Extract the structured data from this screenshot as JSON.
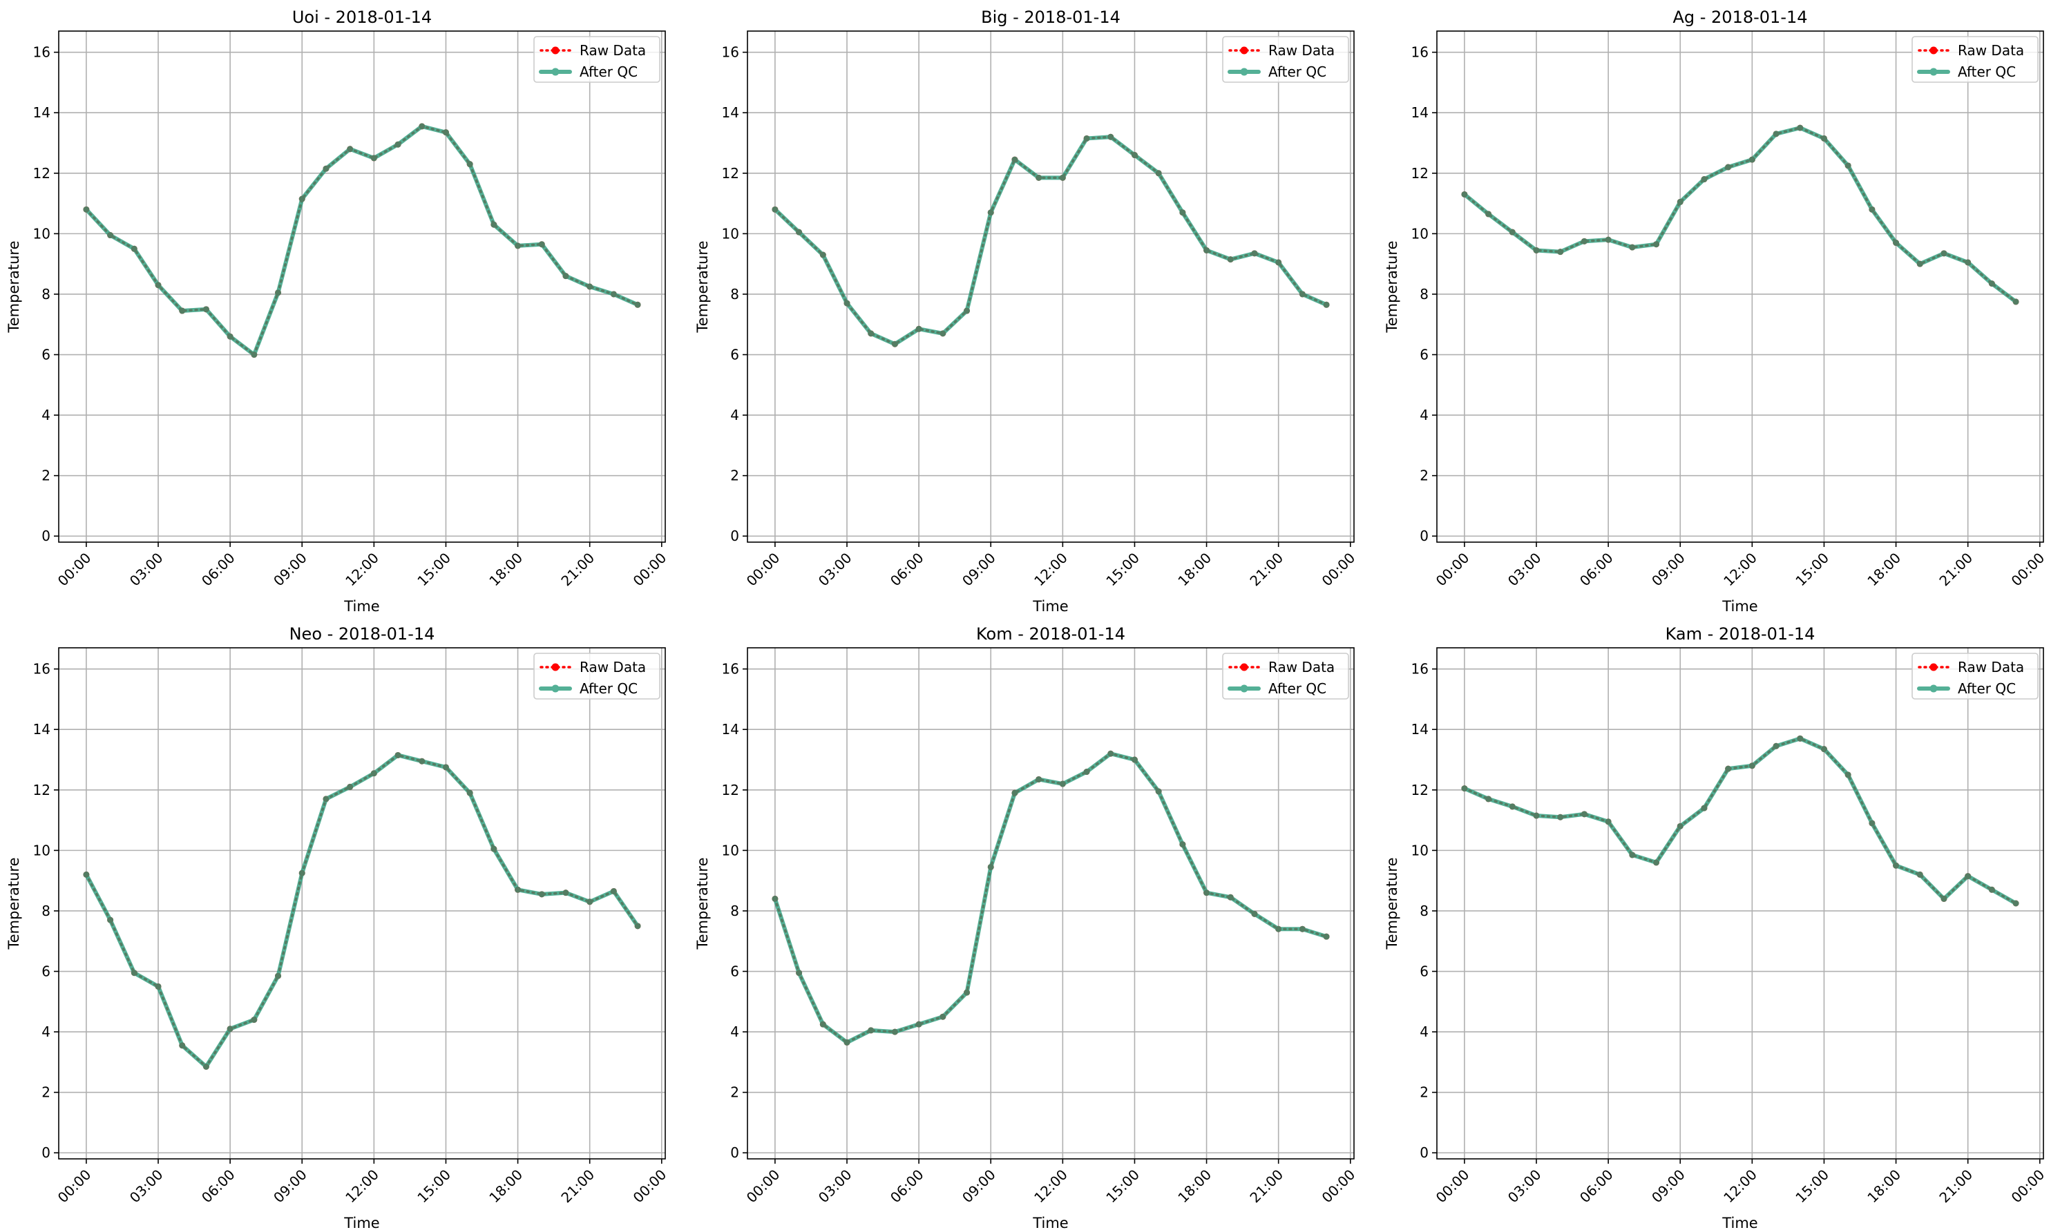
{
  "chart_data": [
    {
      "type": "line",
      "title": "Uoi - 2018-01-14",
      "xlabel": "Time",
      "ylabel": "Temperature",
      "xlim": [
        -1.15,
        24.15
      ],
      "ylim": [
        -0.2,
        16.7
      ],
      "yticks": [
        0,
        2,
        4,
        6,
        8,
        10,
        12,
        14,
        16
      ],
      "xticks": [
        0,
        3,
        6,
        9,
        12,
        15,
        18,
        21,
        24
      ],
      "xtick_labels": [
        "00:00",
        "03:00",
        "06:00",
        "09:00",
        "12:00",
        "15:00",
        "18:00",
        "21:00",
        "00:00"
      ],
      "grid": true,
      "legend_position": "top-right",
      "x": [
        0,
        1,
        2,
        3,
        4,
        5,
        6,
        7,
        8,
        9,
        10,
        11,
        12,
        13,
        14,
        15,
        16,
        17,
        18,
        19,
        20,
        21,
        22,
        23
      ],
      "series": [
        {
          "name": "Raw Data",
          "color": "#ff0000",
          "style": "dotted-marker",
          "values": [
            10.8,
            9.95,
            9.5,
            8.3,
            7.45,
            7.5,
            6.6,
            6.0,
            8.05,
            11.15,
            12.15,
            12.8,
            12.5,
            12.95,
            13.55,
            13.35,
            12.3,
            10.3,
            9.6,
            9.65,
            8.6,
            8.25,
            8.0,
            7.65
          ]
        },
        {
          "name": "After QC",
          "color": "#2a9d7c",
          "style": "solid-marker",
          "values": [
            10.8,
            9.95,
            9.5,
            8.3,
            7.45,
            7.5,
            6.6,
            6.0,
            8.05,
            11.15,
            12.15,
            12.8,
            12.5,
            12.95,
            13.55,
            13.35,
            12.3,
            10.3,
            9.6,
            9.65,
            8.6,
            8.25,
            8.0,
            7.65
          ]
        }
      ]
    },
    {
      "type": "line",
      "title": "Big - 2018-01-14",
      "xlabel": "Time",
      "ylabel": "Temperature",
      "xlim": [
        -1.15,
        24.15
      ],
      "ylim": [
        -0.2,
        16.7
      ],
      "yticks": [
        0,
        2,
        4,
        6,
        8,
        10,
        12,
        14,
        16
      ],
      "xticks": [
        0,
        3,
        6,
        9,
        12,
        15,
        18,
        21,
        24
      ],
      "xtick_labels": [
        "00:00",
        "03:00",
        "06:00",
        "09:00",
        "12:00",
        "15:00",
        "18:00",
        "21:00",
        "00:00"
      ],
      "grid": true,
      "legend_position": "top-right",
      "x": [
        0,
        1,
        2,
        3,
        4,
        5,
        6,
        7,
        8,
        9,
        10,
        11,
        12,
        13,
        14,
        15,
        16,
        17,
        18,
        19,
        20,
        21,
        22,
        23
      ],
      "series": [
        {
          "name": "Raw Data",
          "color": "#ff0000",
          "style": "dotted-marker",
          "values": [
            10.8,
            10.05,
            9.3,
            7.7,
            6.7,
            6.35,
            6.85,
            6.7,
            7.45,
            10.7,
            12.45,
            11.85,
            11.85,
            13.15,
            13.2,
            12.6,
            12.0,
            10.7,
            9.45,
            9.15,
            9.35,
            9.05,
            8.0,
            7.65
          ]
        },
        {
          "name": "After QC",
          "color": "#2a9d7c",
          "style": "solid-marker",
          "values": [
            10.8,
            10.05,
            9.3,
            7.7,
            6.7,
            6.35,
            6.85,
            6.7,
            7.45,
            10.7,
            12.45,
            11.85,
            11.85,
            13.15,
            13.2,
            12.6,
            12.0,
            10.7,
            9.45,
            9.15,
            9.35,
            9.05,
            8.0,
            7.65
          ]
        }
      ]
    },
    {
      "type": "line",
      "title": "Ag - 2018-01-14",
      "xlabel": "Time",
      "ylabel": "Temperature",
      "xlim": [
        -1.15,
        24.15
      ],
      "ylim": [
        -0.2,
        16.7
      ],
      "yticks": [
        0,
        2,
        4,
        6,
        8,
        10,
        12,
        14,
        16
      ],
      "xticks": [
        0,
        3,
        6,
        9,
        12,
        15,
        18,
        21,
        24
      ],
      "xtick_labels": [
        "00:00",
        "03:00",
        "06:00",
        "09:00",
        "12:00",
        "15:00",
        "18:00",
        "21:00",
        "00:00"
      ],
      "grid": true,
      "legend_position": "top-right",
      "x": [
        0,
        1,
        2,
        3,
        4,
        5,
        6,
        7,
        8,
        9,
        10,
        11,
        12,
        13,
        14,
        15,
        16,
        17,
        18,
        19,
        20,
        21,
        22,
        23
      ],
      "series": [
        {
          "name": "Raw Data",
          "color": "#ff0000",
          "style": "dotted-marker",
          "values": [
            11.3,
            10.65,
            10.05,
            9.45,
            9.4,
            9.75,
            9.8,
            9.55,
            9.65,
            11.05,
            11.8,
            12.2,
            12.45,
            13.3,
            13.5,
            13.15,
            12.25,
            10.8,
            9.7,
            9.0,
            9.35,
            9.05,
            8.35,
            7.75
          ]
        },
        {
          "name": "After QC",
          "color": "#2a9d7c",
          "style": "solid-marker",
          "values": [
            11.3,
            10.65,
            10.05,
            9.45,
            9.4,
            9.75,
            9.8,
            9.55,
            9.65,
            11.05,
            11.8,
            12.2,
            12.45,
            13.3,
            13.5,
            13.15,
            12.25,
            10.8,
            9.7,
            9.0,
            9.35,
            9.05,
            8.35,
            7.75
          ]
        }
      ]
    },
    {
      "type": "line",
      "title": "Neo - 2018-01-14",
      "xlabel": "Time",
      "ylabel": "Temperature",
      "xlim": [
        -1.15,
        24.15
      ],
      "ylim": [
        -0.2,
        16.7
      ],
      "yticks": [
        0,
        2,
        4,
        6,
        8,
        10,
        12,
        14,
        16
      ],
      "xticks": [
        0,
        3,
        6,
        9,
        12,
        15,
        18,
        21,
        24
      ],
      "xtick_labels": [
        "00:00",
        "03:00",
        "06:00",
        "09:00",
        "12:00",
        "15:00",
        "18:00",
        "21:00",
        "00:00"
      ],
      "grid": true,
      "legend_position": "top-right",
      "x": [
        0,
        1,
        2,
        3,
        4,
        5,
        6,
        7,
        8,
        9,
        10,
        11,
        12,
        13,
        14,
        15,
        16,
        17,
        18,
        19,
        20,
        21,
        22,
        23
      ],
      "series": [
        {
          "name": "Raw Data",
          "color": "#ff0000",
          "style": "dotted-marker",
          "values": [
            9.2,
            7.7,
            5.95,
            5.5,
            3.55,
            2.85,
            4.1,
            4.4,
            5.85,
            9.25,
            11.7,
            12.1,
            12.55,
            13.15,
            12.95,
            12.75,
            11.9,
            10.05,
            8.7,
            8.55,
            8.6,
            8.3,
            8.65,
            7.5
          ]
        },
        {
          "name": "After QC",
          "color": "#2a9d7c",
          "style": "solid-marker",
          "values": [
            9.2,
            7.7,
            5.95,
            5.5,
            3.55,
            2.85,
            4.1,
            4.4,
            5.85,
            9.25,
            11.7,
            12.1,
            12.55,
            13.15,
            12.95,
            12.75,
            11.9,
            10.05,
            8.7,
            8.55,
            8.6,
            8.3,
            8.65,
            7.5
          ]
        }
      ]
    },
    {
      "type": "line",
      "title": "Kom - 2018-01-14",
      "xlabel": "Time",
      "ylabel": "Temperature",
      "xlim": [
        -1.15,
        24.15
      ],
      "ylim": [
        -0.2,
        16.7
      ],
      "yticks": [
        0,
        2,
        4,
        6,
        8,
        10,
        12,
        14,
        16
      ],
      "xticks": [
        0,
        3,
        6,
        9,
        12,
        15,
        18,
        21,
        24
      ],
      "xtick_labels": [
        "00:00",
        "03:00",
        "06:00",
        "09:00",
        "12:00",
        "15:00",
        "18:00",
        "21:00",
        "00:00"
      ],
      "grid": true,
      "legend_position": "top-right",
      "x": [
        0,
        1,
        2,
        3,
        4,
        5,
        6,
        7,
        8,
        9,
        10,
        11,
        12,
        13,
        14,
        15,
        16,
        17,
        18,
        19,
        20,
        21,
        22,
        23
      ],
      "series": [
        {
          "name": "Raw Data",
          "color": "#ff0000",
          "style": "dotted-marker",
          "values": [
            8.4,
            5.95,
            4.25,
            3.65,
            4.05,
            4.0,
            4.25,
            4.5,
            5.3,
            9.45,
            11.9,
            12.35,
            12.2,
            12.6,
            13.2,
            13.0,
            11.95,
            10.2,
            8.6,
            8.45,
            7.9,
            7.4,
            7.4,
            7.15
          ]
        },
        {
          "name": "After QC",
          "color": "#2a9d7c",
          "style": "solid-marker",
          "values": [
            8.4,
            5.95,
            4.25,
            3.65,
            4.05,
            4.0,
            4.25,
            4.5,
            5.3,
            9.45,
            11.9,
            12.35,
            12.2,
            12.6,
            13.2,
            13.0,
            11.95,
            10.2,
            8.6,
            8.45,
            7.9,
            7.4,
            7.4,
            7.15
          ]
        }
      ]
    },
    {
      "type": "line",
      "title": "Kam - 2018-01-14",
      "xlabel": "Time",
      "ylabel": "Temperature",
      "xlim": [
        -1.15,
        24.15
      ],
      "ylim": [
        -0.2,
        16.7
      ],
      "yticks": [
        0,
        2,
        4,
        6,
        8,
        10,
        12,
        14,
        16
      ],
      "xticks": [
        0,
        3,
        6,
        9,
        12,
        15,
        18,
        21,
        24
      ],
      "xtick_labels": [
        "00:00",
        "03:00",
        "06:00",
        "09:00",
        "12:00",
        "15:00",
        "18:00",
        "21:00",
        "00:00"
      ],
      "grid": true,
      "legend_position": "top-right",
      "x": [
        0,
        1,
        2,
        3,
        4,
        5,
        6,
        7,
        8,
        9,
        10,
        11,
        12,
        13,
        14,
        15,
        16,
        17,
        18,
        19,
        20,
        21,
        22,
        23
      ],
      "series": [
        {
          "name": "Raw Data",
          "color": "#ff0000",
          "style": "dotted-marker",
          "values": [
            12.05,
            11.7,
            11.45,
            11.15,
            11.1,
            11.2,
            10.95,
            9.85,
            9.6,
            10.8,
            11.4,
            12.7,
            12.8,
            13.45,
            13.7,
            13.35,
            12.5,
            10.9,
            9.5,
            9.2,
            8.4,
            9.15,
            8.7,
            8.25
          ]
        },
        {
          "name": "After QC",
          "color": "#2a9d7c",
          "style": "solid-marker",
          "values": [
            12.05,
            11.7,
            11.45,
            11.15,
            11.1,
            11.2,
            10.95,
            9.85,
            9.6,
            10.8,
            11.4,
            12.7,
            12.8,
            13.45,
            13.7,
            13.35,
            12.5,
            10.9,
            9.5,
            9.2,
            8.4,
            9.15,
            8.7,
            8.25
          ]
        }
      ]
    }
  ]
}
